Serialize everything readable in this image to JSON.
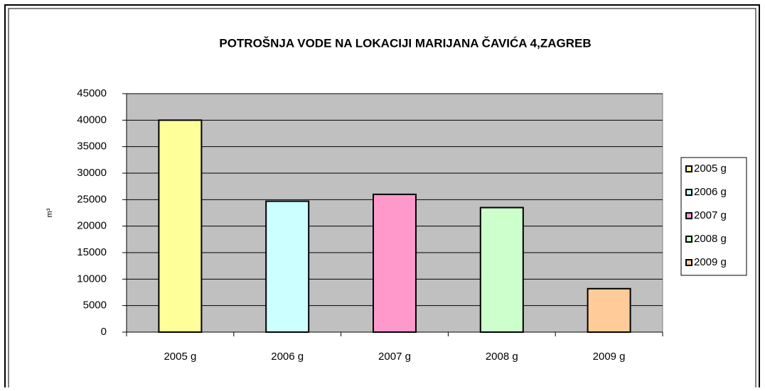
{
  "chart_data": {
    "type": "bar",
    "title": "POTROŠNJA VODE NA LOKACIJI MARIJANA ČAVIĆA 4,ZAGREB",
    "y_label": "m³",
    "categories": [
      "2005 g",
      "2006 g",
      "2007 g",
      "2008 g",
      "2009 g"
    ],
    "values": [
      40000,
      24700,
      26000,
      23500,
      8200
    ],
    "colors": [
      "#ffff99",
      "#ccffff",
      "#ff99cc",
      "#ccffcc",
      "#ffcc99"
    ],
    "ylim": [
      0,
      45000
    ],
    "yticks": [
      0,
      5000,
      10000,
      15000,
      20000,
      25000,
      30000,
      35000,
      40000,
      45000
    ],
    "grid": true,
    "legend": "right",
    "plot_background": "#c0c0c0"
  }
}
